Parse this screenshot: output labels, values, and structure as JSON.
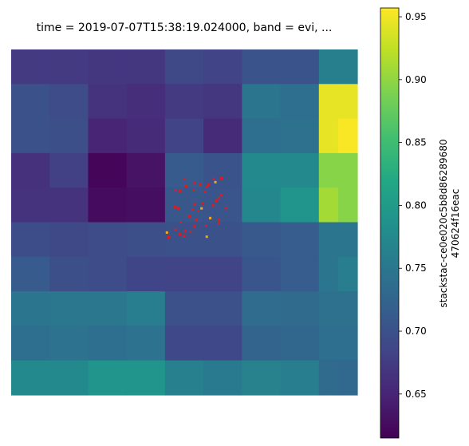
{
  "chart_data": {
    "type": "heatmap",
    "title": "time = 2019-07-07T15:38:19.024000, band = evi, ...",
    "colorbar": {
      "label_line1": "stackstac-ce0e020c5b8d86289680",
      "label_line2": "470624f16eac",
      "ticks": [
        0.65,
        0.7,
        0.75,
        0.8,
        0.85,
        0.9,
        0.95
      ],
      "tick_labels": [
        "0.65",
        "0.70",
        "0.75",
        "0.80",
        "0.85",
        "0.90",
        "0.95"
      ],
      "range": [
        0.615,
        0.957
      ]
    },
    "grid": false,
    "colormap": "viridis",
    "column_widths": [
      2,
      2,
      2,
      2,
      2,
      2,
      2,
      2,
      1,
      1
    ],
    "row_heights": [
      1,
      1,
      1,
      1,
      1,
      1,
      1,
      1,
      1,
      1
    ],
    "values": [
      [
        0.673,
        0.673,
        0.67,
        0.668,
        0.69,
        0.683,
        0.703,
        0.703,
        0.762,
        0.762
      ],
      [
        0.7,
        0.693,
        0.665,
        0.66,
        0.673,
        0.668,
        0.748,
        0.738,
        0.945,
        0.945
      ],
      [
        0.7,
        0.697,
        0.65,
        0.657,
        0.683,
        0.657,
        0.738,
        0.742,
        0.945,
        0.955
      ],
      [
        0.663,
        0.68,
        0.62,
        0.633,
        0.713,
        0.703,
        0.775,
        0.775,
        0.895,
        0.895
      ],
      [
        0.665,
        0.665,
        0.625,
        0.628,
        0.708,
        0.705,
        0.773,
        0.79,
        0.91,
        0.895
      ],
      [
        0.695,
        0.69,
        0.693,
        0.697,
        0.7,
        0.7,
        0.71,
        0.715,
        0.748,
        0.748
      ],
      [
        0.713,
        0.697,
        0.693,
        0.685,
        0.683,
        0.683,
        0.705,
        0.715,
        0.748,
        0.758
      ],
      [
        0.748,
        0.75,
        0.75,
        0.758,
        0.698,
        0.698,
        0.735,
        0.733,
        0.742,
        0.742
      ],
      [
        0.738,
        0.743,
        0.738,
        0.743,
        0.688,
        0.688,
        0.725,
        0.728,
        0.738,
        0.738
      ],
      [
        0.775,
        0.775,
        0.79,
        0.79,
        0.763,
        0.755,
        0.765,
        0.76,
        0.733,
        0.73
      ]
    ],
    "markers": {
      "red": "#e41a1c",
      "orange": "#f5a623",
      "points": [
        [
          0.5,
          0.375,
          "red"
        ],
        [
          0.53,
          0.386,
          "red"
        ],
        [
          0.585,
          0.375,
          "red"
        ],
        [
          0.607,
          0.373,
          "red"
        ],
        [
          0.505,
          0.396,
          "red"
        ],
        [
          0.546,
          0.391,
          "red"
        ],
        [
          0.564,
          0.398,
          "red"
        ],
        [
          0.57,
          0.392,
          "red"
        ],
        [
          0.59,
          0.384,
          "orange"
        ],
        [
          0.475,
          0.408,
          "red"
        ],
        [
          0.488,
          0.41,
          "red"
        ],
        [
          0.527,
          0.407,
          "red"
        ],
        [
          0.56,
          0.412,
          "red"
        ],
        [
          0.607,
          0.422,
          "red"
        ],
        [
          0.6,
          0.43,
          "red"
        ],
        [
          0.53,
          0.448,
          "red"
        ],
        [
          0.553,
          0.446,
          "red"
        ],
        [
          0.583,
          0.451,
          "red"
        ],
        [
          0.593,
          0.438,
          "red"
        ],
        [
          0.62,
          0.459,
          "red"
        ],
        [
          0.473,
          0.456,
          "red"
        ],
        [
          0.483,
          0.46,
          "red"
        ],
        [
          0.525,
          0.463,
          "red"
        ],
        [
          0.54,
          0.468,
          "red"
        ],
        [
          0.575,
          0.488,
          "orange"
        ],
        [
          0.6,
          0.493,
          "red"
        ],
        [
          0.6,
          0.503,
          "red"
        ],
        [
          0.515,
          0.483,
          "red"
        ],
        [
          0.535,
          0.493,
          "red"
        ],
        [
          0.49,
          0.5,
          "red"
        ],
        [
          0.53,
          0.512,
          "red"
        ],
        [
          0.563,
          0.51,
          "red"
        ],
        [
          0.475,
          0.522,
          "red"
        ],
        [
          0.503,
          0.525,
          "red"
        ],
        [
          0.518,
          0.528,
          "red"
        ],
        [
          0.45,
          0.53,
          "orange"
        ],
        [
          0.487,
          0.535,
          "red"
        ],
        [
          0.5,
          0.54,
          "red"
        ],
        [
          0.455,
          0.544,
          "red"
        ],
        [
          0.565,
          0.542,
          "orange"
        ],
        [
          0.55,
          0.46,
          "orange"
        ]
      ]
    }
  }
}
